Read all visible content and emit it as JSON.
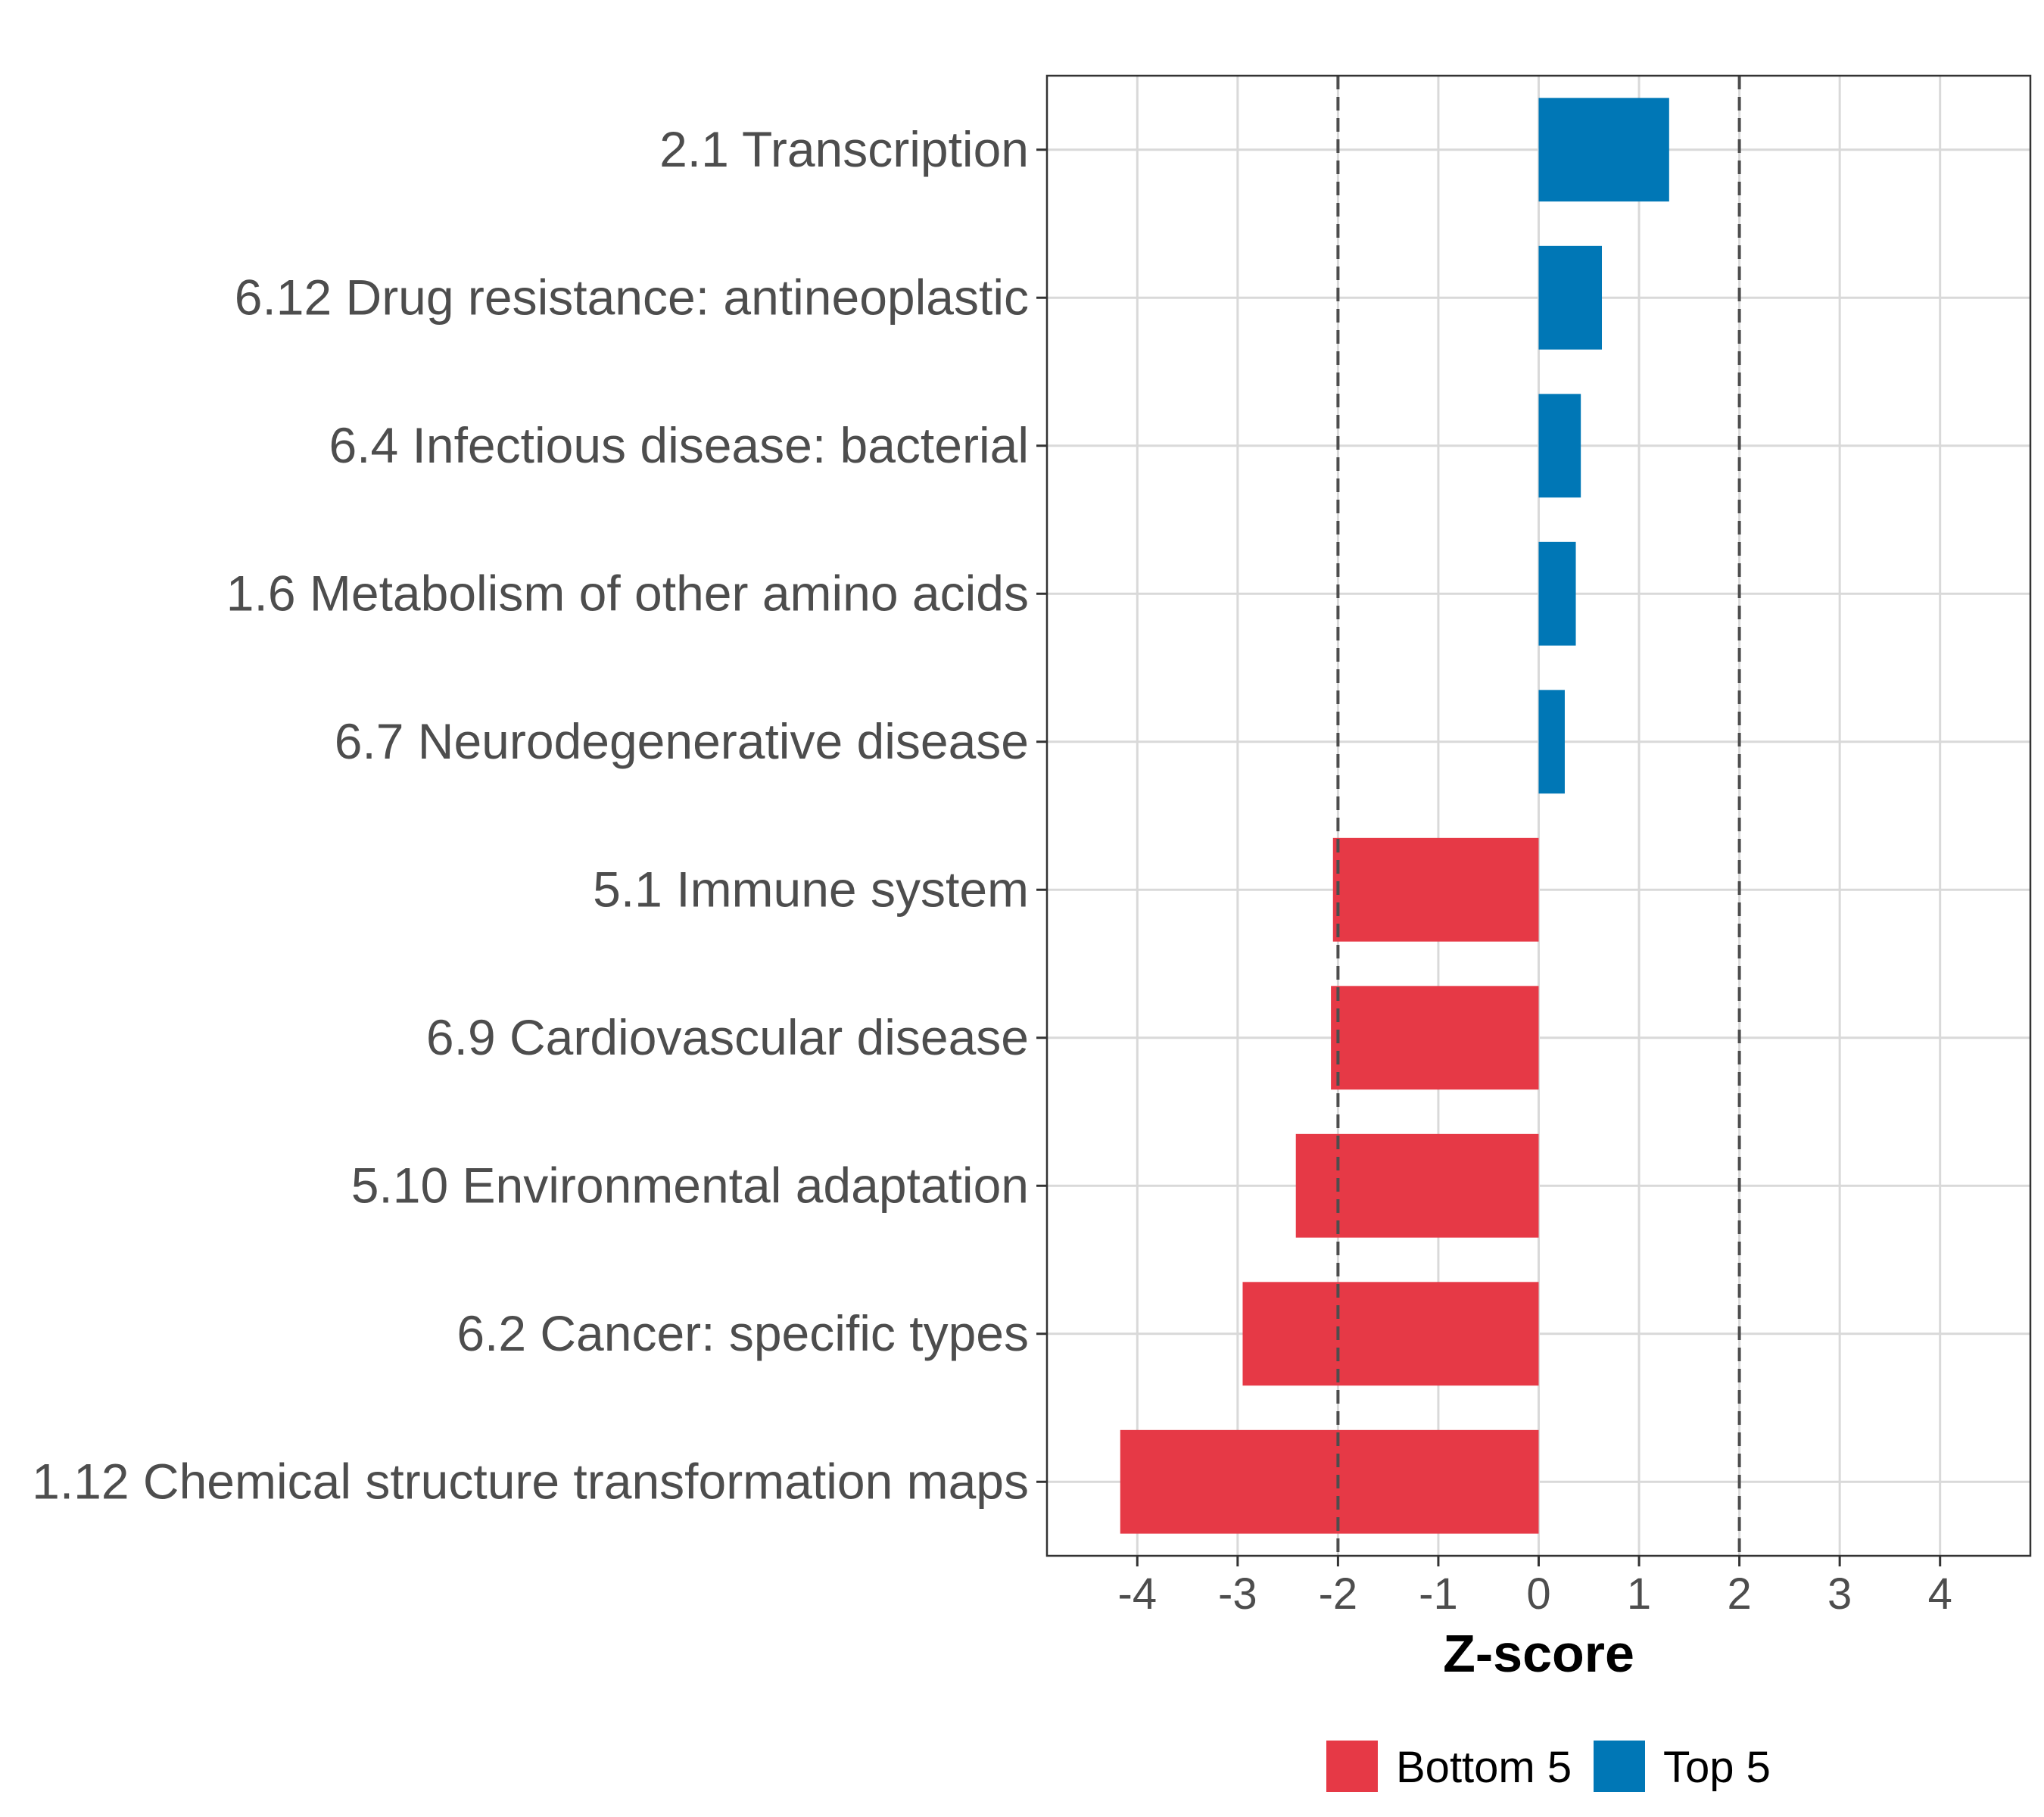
{
  "chart_data": {
    "type": "bar",
    "orientation": "horizontal",
    "categories": [
      "2.1 Transcription",
      "6.12 Drug resistance: antineoplastic",
      "6.4 Infectious disease: bacterial",
      "1.6 Metabolism of other amino acids",
      "6.7 Neurodegenerative disease",
      "5.1 Immune system",
      "6.9 Cardiovascular disease",
      "5.10 Environmental adaptation",
      "6.2 Cancer: specific types",
      "1.12 Chemical structure transformation maps"
    ],
    "values": [
      1.3,
      0.63,
      0.42,
      0.37,
      0.26,
      -2.05,
      -2.07,
      -2.42,
      -2.95,
      -4.17
    ],
    "groups": [
      "Top 5",
      "Top 5",
      "Top 5",
      "Top 5",
      "Top 5",
      "Bottom 5",
      "Bottom 5",
      "Bottom 5",
      "Bottom 5",
      "Bottom 5"
    ],
    "xlabel": "Z-score",
    "ylabel": "",
    "xlim": [
      -4.9,
      4.9
    ],
    "xticks": [
      -4,
      -3,
      -2,
      -1,
      0,
      1,
      2,
      3,
      4
    ],
    "xtick_labels": [
      "-4",
      "-3",
      "-2",
      "-1",
      "0",
      "1",
      "2",
      "3",
      "4"
    ],
    "reference_lines": [
      -2,
      2
    ],
    "grid": true,
    "legend": {
      "position": "bottom",
      "entries": [
        {
          "label": "Bottom 5",
          "color": "#e63946"
        },
        {
          "label": "Top 5",
          "color": "#0077b6"
        }
      ]
    },
    "colors": {
      "Bottom 5": "#e63946",
      "Top 5": "#0077b6"
    }
  }
}
